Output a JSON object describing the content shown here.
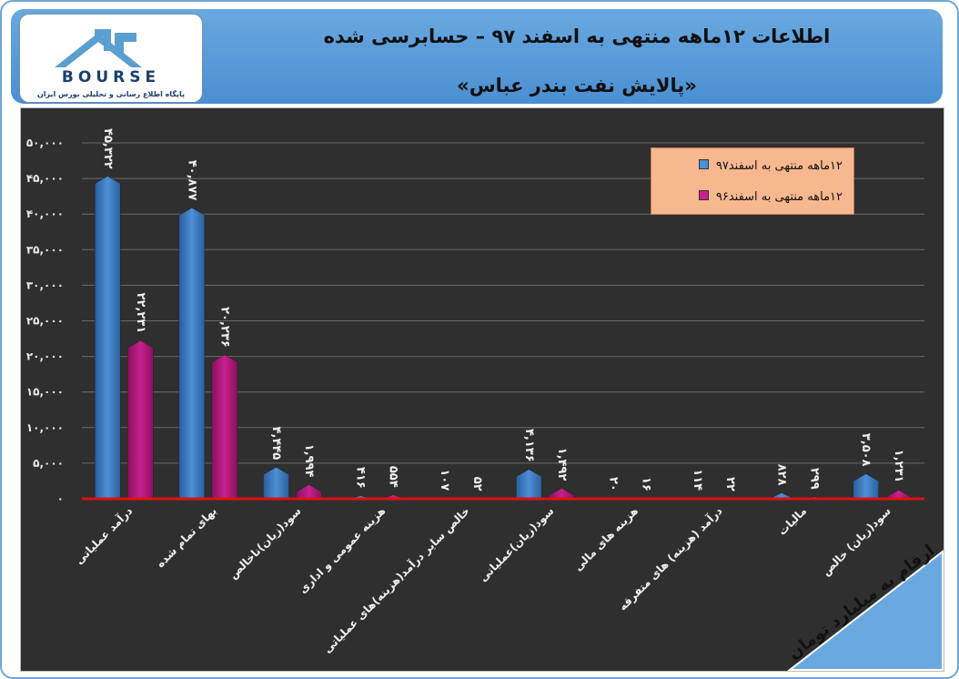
{
  "header": {
    "logo_title": "BOURSE",
    "logo_caption": "پایگاه اطلاع رسانی و تحلیلی بورس ایران",
    "title": "اطلاعات ۱۲ماهه منتهی به اسفند ۹۷ – حسابرسی شده",
    "subtitle": "«پالایش نفت بندر عباس»"
  },
  "note": "ارقام به میلیارد تومان",
  "colors": {
    "series_97": "#4d8fd6",
    "series_96": "#c8208c",
    "baseline": "#e01010",
    "background": "#2f2f2f"
  },
  "chart_data": {
    "type": "bar",
    "categories": [
      "درآمد عملیاتی",
      "بهای تمام شده",
      "سود(زیان)ناخالص",
      "هزینه عمومی و اداری",
      "خالص سایر درآمد(هزینه)های عملیاتی",
      "سود(زیان)عملیاتی",
      "هزینه های مالی",
      "درآمد (هزینه) های متفرقه",
      "مالیات",
      "سود(زیان) خالص"
    ],
    "series": [
      {
        "name": "۱۲ماهه منتهی به اسفند۹۷",
        "values": [
          45322,
          40877,
          4445,
          416,
          107,
          4136,
          20,
          114,
          828,
          3508
        ],
        "labels": [
          "۴۵,۳۲۲",
          "۴۰,۸۷۷",
          "۴,۴۴۵",
          "۴۱۶",
          "۱۰۷",
          "۴,۱۳۶",
          "۲۰",
          "۱۱۴",
          "۸۲۸",
          "۳,۵۰۸"
        ]
      },
      {
        "name": "۱۲ماهه منتهی به اسفند۹۶",
        "values": [
          22231,
          20236,
          1994,
          554,
          52,
          1492,
          16,
          22,
          299,
          1231
        ],
        "labels": [
          "۲۲,۲۳۱",
          "۲۰,۲۳۶",
          "۱,۹۹۴",
          "۵۵۴",
          "۵۲",
          "۱,۴۹۲",
          "۱۶",
          "۲۲",
          "۲۹۹",
          "۱,۲۳۱"
        ]
      }
    ],
    "yticks": [
      0,
      5000,
      10000,
      15000,
      20000,
      25000,
      30000,
      35000,
      40000,
      45000,
      50000
    ],
    "ytick_labels": [
      "۰",
      "۵,۰۰۰",
      "۱۰,۰۰۰",
      "۱۵,۰۰۰",
      "۲۰,۰۰۰",
      "۲۵,۰۰۰",
      "۳۰,۰۰۰",
      "۳۵,۰۰۰",
      "۴۰,۰۰۰",
      "۴۵,۰۰۰",
      "۵۰,۰۰۰"
    ],
    "ylim": [
      0,
      50000
    ],
    "grid": true,
    "legend_position": "top-right"
  }
}
